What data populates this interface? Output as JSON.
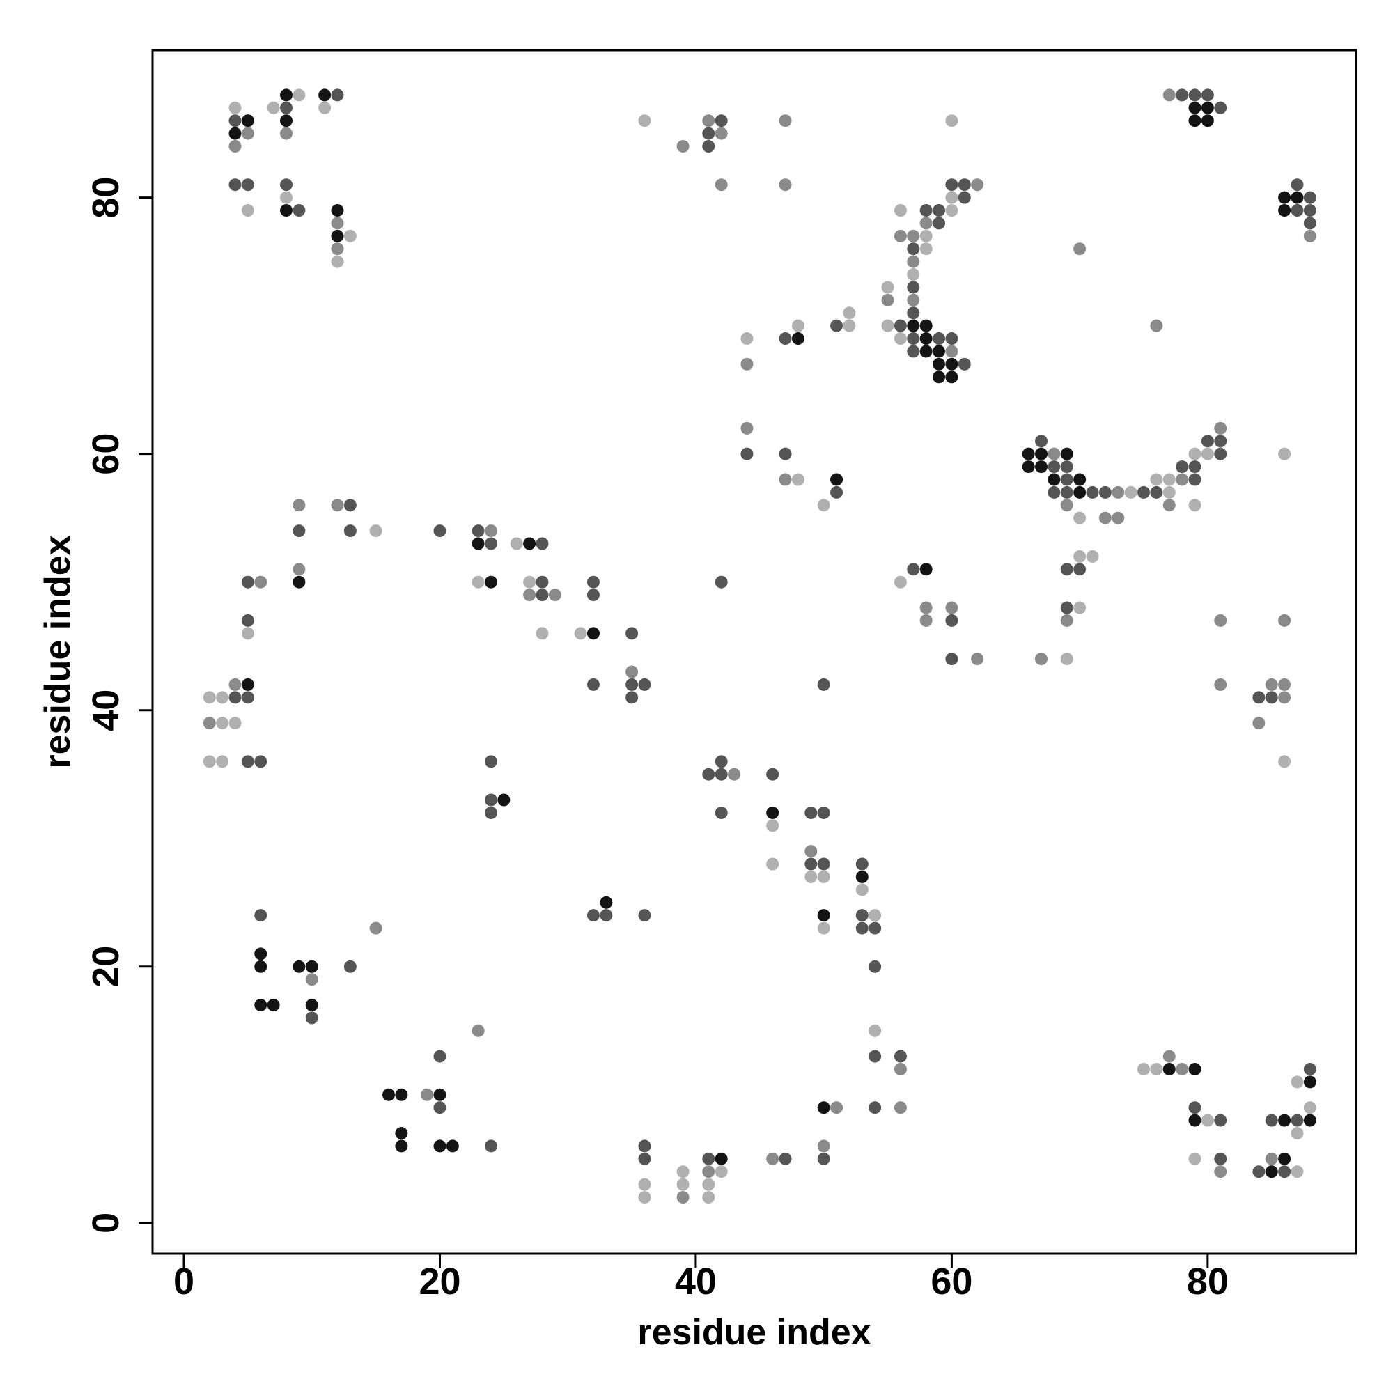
{
  "chart_data": {
    "type": "scatter",
    "x_label": "residue index",
    "y_label": "residue index",
    "xlim": [
      -2.45,
      91.6
    ],
    "ylim": [
      -2.4,
      91.5
    ],
    "xticks": [
      0,
      20,
      40,
      60,
      80
    ],
    "yticks": [
      0,
      20,
      40,
      60,
      80
    ],
    "series": [
      {
        "color": "#b0b0b0",
        "x": [
          4,
          5,
          7,
          9,
          11,
          8,
          13,
          12,
          36,
          60,
          56,
          60,
          60,
          58,
          58,
          57,
          55,
          52,
          52,
          55,
          56,
          44,
          48,
          48,
          50,
          74,
          77,
          70,
          76,
          77,
          79,
          80,
          79,
          86,
          70,
          71,
          70,
          69,
          56,
          86,
          15,
          5,
          2,
          3,
          3,
          4,
          2,
          3,
          23,
          26,
          27,
          28,
          31,
          46,
          46,
          49,
          50,
          53,
          54,
          50,
          54,
          36,
          36,
          39,
          39,
          42,
          41,
          41,
          75,
          76,
          80,
          79,
          87,
          87,
          87,
          88
        ],
        "values": [
          87,
          79,
          87,
          88,
          87,
          80,
          77,
          75,
          86,
          86,
          79,
          80,
          79,
          77,
          76,
          74,
          73,
          71,
          70,
          70,
          69,
          69,
          70,
          58,
          56,
          57,
          57,
          55,
          58,
          58,
          60,
          60,
          56,
          60,
          52,
          52,
          48,
          44,
          50,
          36,
          54,
          46,
          41,
          41,
          39,
          39,
          36,
          36,
          50,
          53,
          50,
          46,
          46,
          31,
          28,
          27,
          27,
          26,
          24,
          23,
          15,
          3,
          2,
          4,
          3,
          4,
          3,
          2,
          12,
          12,
          8,
          5,
          4,
          7,
          11,
          9
        ]
      },
      {
        "color": "#8a8a8a",
        "x": [
          4,
          5,
          8,
          12,
          12,
          39,
          41,
          42,
          42,
          47,
          47,
          62,
          58,
          56,
          57,
          57,
          57,
          55,
          60,
          44,
          44,
          47,
          68,
          73,
          69,
          72,
          73,
          78,
          81,
          77,
          69,
          67,
          58,
          60,
          58,
          62,
          81,
          86,
          81,
          85,
          86,
          86,
          84,
          70,
          76,
          77,
          88,
          9,
          12,
          9,
          6,
          4,
          2,
          24,
          27,
          29,
          35,
          43,
          49,
          56,
          56,
          10,
          15,
          19,
          23,
          39,
          41,
          46,
          51,
          50,
          77,
          78,
          81,
          85
        ],
        "values": [
          84,
          85,
          85,
          78,
          76,
          84,
          86,
          85,
          81,
          86,
          81,
          81,
          78,
          77,
          77,
          75,
          72,
          72,
          68,
          67,
          62,
          58,
          60,
          57,
          56,
          55,
          55,
          58,
          62,
          56,
          47,
          44,
          48,
          48,
          47,
          44,
          47,
          47,
          42,
          42,
          42,
          41,
          39,
          76,
          70,
          88,
          77,
          56,
          56,
          51,
          50,
          42,
          39,
          54,
          49,
          49,
          43,
          35,
          29,
          12,
          9,
          19,
          23,
          10,
          15,
          2,
          4,
          5,
          9,
          6,
          13,
          12,
          4,
          5
        ]
      },
      {
        "color": "#555555",
        "x": [
          4,
          4,
          5,
          8,
          8,
          9,
          12,
          41,
          41,
          42,
          58,
          59,
          60,
          61,
          61,
          59,
          57,
          57,
          57,
          51,
          56,
          57,
          59,
          60,
          57,
          61,
          47,
          44,
          47,
          51,
          67,
          68,
          69,
          69,
          68,
          69,
          71,
          72,
          75,
          76,
          79,
          78,
          79,
          80,
          81,
          81,
          69,
          70,
          69,
          57,
          60,
          60,
          84,
          85,
          78,
          79,
          80,
          81,
          87,
          88,
          87,
          88,
          88,
          9,
          13,
          13,
          20,
          5,
          5,
          4,
          5,
          5,
          6,
          23,
          24,
          28,
          28,
          28,
          32,
          32,
          35,
          35,
          36,
          35,
          32,
          42,
          50,
          24,
          24,
          24,
          41,
          42,
          42,
          42,
          46,
          49,
          50,
          49,
          50,
          53,
          53,
          53,
          54,
          54,
          54,
          56,
          54,
          32,
          33,
          36,
          6,
          13,
          10,
          20,
          20,
          24,
          36,
          36,
          41,
          47,
          50,
          79,
          81,
          81,
          84,
          86,
          85,
          87,
          88
        ],
        "values": [
          86,
          81,
          81,
          87,
          81,
          79,
          88,
          85,
          84,
          86,
          79,
          79,
          81,
          81,
          80,
          78,
          76,
          73,
          71,
          70,
          70,
          69,
          69,
          69,
          68,
          67,
          69,
          60,
          60,
          57,
          61,
          59,
          59,
          58,
          57,
          57,
          57,
          57,
          57,
          57,
          58,
          59,
          59,
          61,
          61,
          60,
          51,
          51,
          48,
          51,
          47,
          44,
          41,
          41,
          88,
          88,
          88,
          87,
          81,
          80,
          79,
          79,
          78,
          54,
          56,
          54,
          54,
          50,
          47,
          41,
          41,
          36,
          36,
          54,
          53,
          53,
          50,
          49,
          50,
          49,
          46,
          42,
          42,
          41,
          42,
          50,
          42,
          36,
          33,
          32,
          35,
          35,
          36,
          32,
          35,
          32,
          32,
          28,
          28,
          28,
          24,
          23,
          23,
          20,
          13,
          13,
          9,
          24,
          24,
          24,
          24,
          20,
          16,
          9,
          13,
          6,
          6,
          5,
          5,
          5,
          5,
          9,
          8,
          5,
          4,
          4,
          8,
          8,
          12
        ]
      },
      {
        "color": "#141414",
        "x": [
          5,
          4,
          8,
          8,
          8,
          11,
          12,
          12,
          57,
          58,
          58,
          58,
          59,
          59,
          60,
          59,
          60,
          48,
          51,
          66,
          66,
          67,
          67,
          69,
          68,
          70,
          70,
          58,
          79,
          80,
          79,
          80,
          86,
          87,
          86,
          9,
          5,
          23,
          27,
          24,
          32,
          25,
          46,
          53,
          50,
          33,
          6,
          6,
          9,
          10,
          6,
          7,
          10,
          16,
          17,
          17,
          17,
          20,
          20,
          21,
          42,
          50,
          77,
          79,
          79,
          85,
          86,
          86,
          88,
          88
        ],
        "values": [
          86,
          85,
          88,
          86,
          79,
          88,
          79,
          77,
          70,
          70,
          69,
          68,
          68,
          67,
          67,
          66,
          66,
          69,
          58,
          60,
          59,
          59,
          60,
          60,
          58,
          58,
          57,
          51,
          87,
          87,
          86,
          86,
          80,
          80,
          79,
          50,
          42,
          53,
          53,
          50,
          46,
          33,
          32,
          27,
          24,
          25,
          21,
          20,
          20,
          20,
          17,
          17,
          17,
          10,
          10,
          7,
          6,
          10,
          6,
          6,
          5,
          9,
          12,
          12,
          8,
          4,
          5,
          8,
          8,
          11
        ]
      }
    ]
  }
}
